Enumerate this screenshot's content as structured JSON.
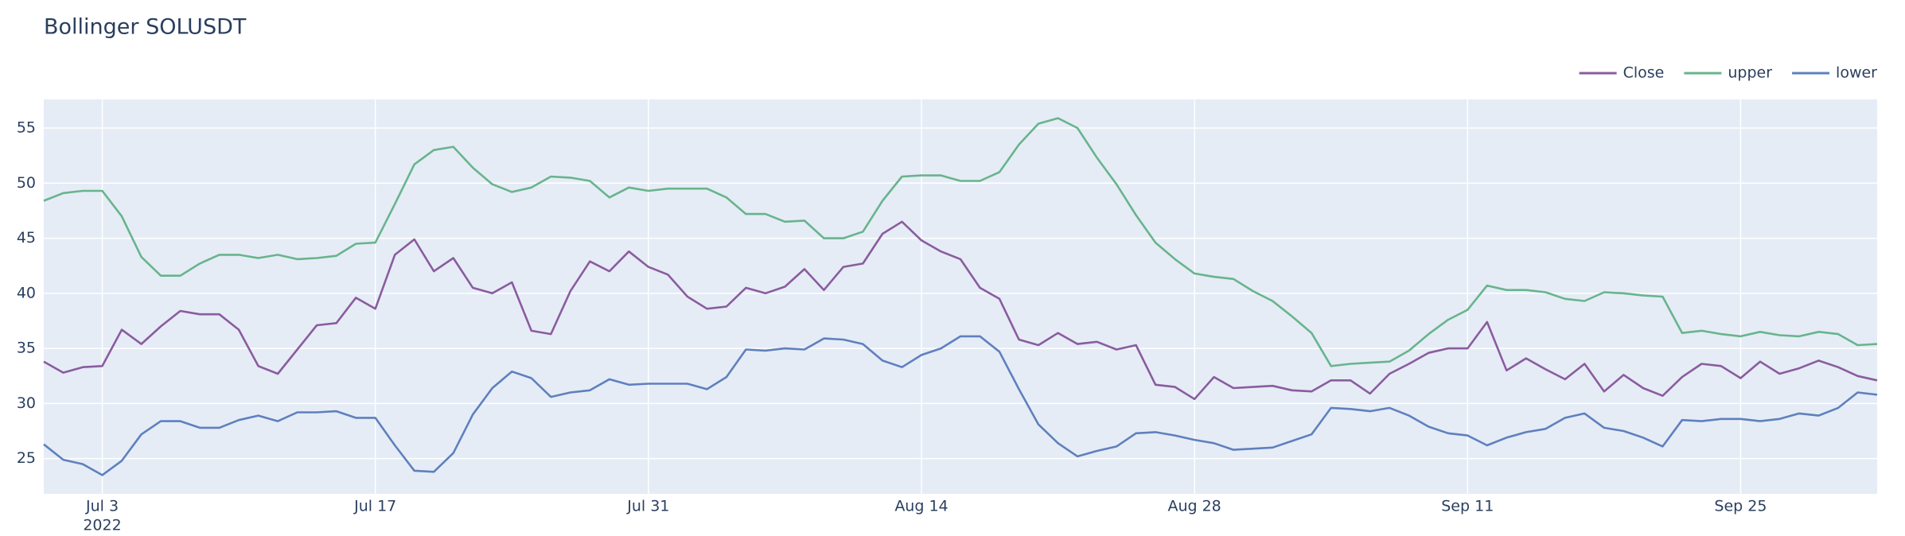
{
  "chart_data": {
    "type": "line",
    "title": "Bollinger SOLUSDT",
    "x": [
      "2022-06-30",
      "2022-07-01",
      "2022-07-02",
      "2022-07-03",
      "2022-07-04",
      "2022-07-05",
      "2022-07-06",
      "2022-07-07",
      "2022-07-08",
      "2022-07-09",
      "2022-07-10",
      "2022-07-11",
      "2022-07-12",
      "2022-07-13",
      "2022-07-14",
      "2022-07-15",
      "2022-07-16",
      "2022-07-17",
      "2022-07-18",
      "2022-07-19",
      "2022-07-20",
      "2022-07-21",
      "2022-07-22",
      "2022-07-23",
      "2022-07-24",
      "2022-07-25",
      "2022-07-26",
      "2022-07-27",
      "2022-07-28",
      "2022-07-29",
      "2022-07-30",
      "2022-07-31",
      "2022-08-01",
      "2022-08-02",
      "2022-08-03",
      "2022-08-04",
      "2022-08-05",
      "2022-08-06",
      "2022-08-07",
      "2022-08-08",
      "2022-08-09",
      "2022-08-10",
      "2022-08-11",
      "2022-08-12",
      "2022-08-13",
      "2022-08-14",
      "2022-08-15",
      "2022-08-16",
      "2022-08-17",
      "2022-08-18",
      "2022-08-19",
      "2022-08-20",
      "2022-08-21",
      "2022-08-22",
      "2022-08-23",
      "2022-08-24",
      "2022-08-25",
      "2022-08-26",
      "2022-08-27",
      "2022-08-28",
      "2022-08-29",
      "2022-08-30",
      "2022-08-31",
      "2022-09-01",
      "2022-09-02",
      "2022-09-03",
      "2022-09-04",
      "2022-09-05",
      "2022-09-06",
      "2022-09-07",
      "2022-09-08",
      "2022-09-09",
      "2022-09-10",
      "2022-09-11",
      "2022-09-12",
      "2022-09-13",
      "2022-09-14",
      "2022-09-15",
      "2022-09-16",
      "2022-09-17",
      "2022-09-18",
      "2022-09-19",
      "2022-09-20",
      "2022-09-21",
      "2022-09-22",
      "2022-09-23",
      "2022-09-24",
      "2022-09-25",
      "2022-09-26",
      "2022-09-27",
      "2022-09-28",
      "2022-09-29",
      "2022-09-30",
      "2022-10-01",
      "2022-10-02"
    ],
    "series": [
      {
        "name": "Close",
        "color": "#8a5c9e",
        "values": [
          33.8,
          32.8,
          33.3,
          33.4,
          36.7,
          35.4,
          37.0,
          38.4,
          38.1,
          38.1,
          36.7,
          33.4,
          32.7,
          34.9,
          37.1,
          37.3,
          39.6,
          38.6,
          43.5,
          44.9,
          42.0,
          43.2,
          40.5,
          40.0,
          41.0,
          36.6,
          36.3,
          40.2,
          42.9,
          42.0,
          43.8,
          42.4,
          41.7,
          39.7,
          38.6,
          38.8,
          40.5,
          40.0,
          40.6,
          42.2,
          40.3,
          42.4,
          42.7,
          45.4,
          46.5,
          44.8,
          43.8,
          43.1,
          40.5,
          39.5,
          35.8,
          35.3,
          36.4,
          35.4,
          35.6,
          34.9,
          35.3,
          31.7,
          31.5,
          30.4,
          32.4,
          31.4,
          31.5,
          31.6,
          31.2,
          31.1,
          32.1,
          32.1,
          30.9,
          32.7,
          33.6,
          34.6,
          35.0,
          35.0,
          37.4,
          33.0,
          34.1,
          33.1,
          32.2,
          33.6,
          31.1,
          32.6,
          31.4,
          30.7,
          32.4,
          33.6,
          33.4,
          32.3,
          33.8,
          32.7,
          33.2,
          33.9,
          33.3,
          32.5,
          32.1
        ]
      },
      {
        "name": "upper",
        "color": "#68b48c",
        "values": [
          48.4,
          49.1,
          49.3,
          49.3,
          47.0,
          43.3,
          41.6,
          41.6,
          42.7,
          43.5,
          43.5,
          43.2,
          43.5,
          43.1,
          43.2,
          43.4,
          44.5,
          44.6,
          48.1,
          51.7,
          53.0,
          53.3,
          51.4,
          49.9,
          49.2,
          49.6,
          50.6,
          50.5,
          50.2,
          48.7,
          49.6,
          49.3,
          49.5,
          49.5,
          49.5,
          48.7,
          47.2,
          47.2,
          46.5,
          46.6,
          45.0,
          45.0,
          45.6,
          48.4,
          50.6,
          50.7,
          50.7,
          50.2,
          50.2,
          51.0,
          53.5,
          55.4,
          55.9,
          55.0,
          52.3,
          49.9,
          47.1,
          44.6,
          43.1,
          41.8,
          41.5,
          41.3,
          40.2,
          39.3,
          37.9,
          36.4,
          33.4,
          33.6,
          33.7,
          33.8,
          34.8,
          36.3,
          37.6,
          38.5,
          40.7,
          40.3,
          40.3,
          40.1,
          39.5,
          39.3,
          40.1,
          40.0,
          39.8,
          39.7,
          36.4,
          36.6,
          36.3,
          36.1,
          36.5,
          36.2,
          36.1,
          36.5,
          36.3,
          35.3,
          35.4
        ]
      },
      {
        "name": "lower",
        "color": "#5f80bd",
        "values": [
          26.3,
          24.9,
          24.5,
          23.5,
          24.8,
          27.2,
          28.4,
          28.4,
          27.8,
          27.8,
          28.5,
          28.9,
          28.4,
          29.2,
          29.2,
          29.3,
          28.7,
          28.7,
          26.2,
          23.9,
          23.8,
          25.5,
          29.0,
          31.4,
          32.9,
          32.3,
          30.6,
          31.0,
          31.2,
          32.2,
          31.7,
          31.8,
          31.8,
          31.8,
          31.3,
          32.4,
          34.9,
          34.8,
          35.0,
          34.9,
          35.9,
          35.8,
          35.4,
          33.9,
          33.3,
          34.4,
          35.0,
          36.1,
          36.1,
          34.7,
          31.3,
          28.1,
          26.4,
          25.2,
          25.7,
          26.1,
          27.3,
          27.4,
          27.1,
          26.7,
          26.4,
          25.8,
          25.9,
          26.0,
          26.6,
          27.2,
          29.6,
          29.5,
          29.3,
          29.6,
          28.9,
          27.9,
          27.3,
          27.1,
          26.2,
          26.9,
          27.4,
          27.7,
          28.7,
          29.1,
          27.8,
          27.5,
          26.9,
          26.1,
          28.5,
          28.4,
          28.6,
          28.6,
          28.4,
          28.6,
          29.1,
          28.9,
          29.6,
          31.0,
          30.8
        ]
      }
    ],
    "xlim": [
      "2022-06-30",
      "2022-10-02"
    ],
    "xticks": [
      {
        "value": "2022-07-03",
        "label": "Jul 3"
      },
      {
        "value": "2022-07-17",
        "label": "Jul 17"
      },
      {
        "value": "2022-07-31",
        "label": "Jul 31"
      },
      {
        "value": "2022-08-14",
        "label": "Aug 14"
      },
      {
        "value": "2022-08-28",
        "label": "Aug 28"
      },
      {
        "value": "2022-09-11",
        "label": "Sep 11"
      },
      {
        "value": "2022-09-25",
        "label": "Sep 25"
      }
    ],
    "x_tick_year": "2022",
    "ylim": [
      21.8,
      57.6
    ],
    "yticks": [
      25,
      30,
      35,
      40,
      45,
      50,
      55
    ],
    "grid": true,
    "legend": "top-right"
  }
}
